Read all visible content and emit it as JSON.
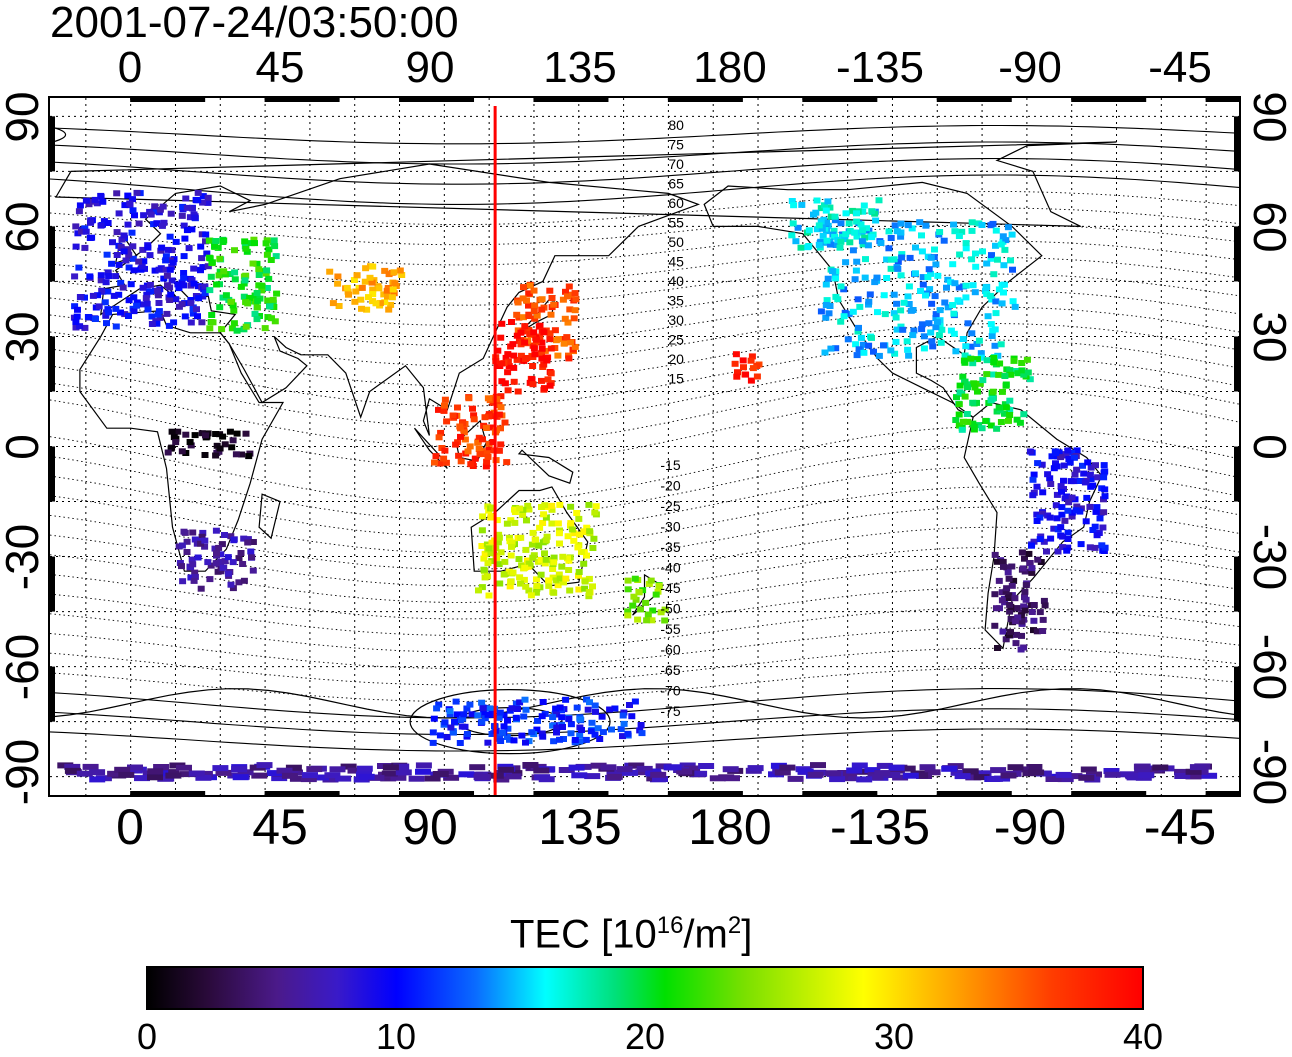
{
  "title": "2001-07-24/03:50:00",
  "top_lon_labels": [
    "0",
    "45",
    "90",
    "135",
    "180",
    "-135",
    "-90",
    "-45"
  ],
  "bottom_lon_labels": [
    "0",
    "45",
    "90",
    "135",
    "180",
    "-135",
    "-90",
    "-45"
  ],
  "left_lat_labels": [
    "90",
    "60",
    "30",
    "0",
    "-30",
    "-60",
    "-90"
  ],
  "right_lat_labels": [
    "90",
    "60",
    "30",
    "0",
    "-30",
    "-60",
    "-90"
  ],
  "contour_labels_north": [
    "80",
    "75",
    "70",
    "65",
    "60",
    "55",
    "50",
    "45",
    "40",
    "35",
    "30",
    "25",
    "20",
    "15"
  ],
  "contour_labels_south": [
    "-15",
    "-20",
    "-25",
    "-30",
    "-35",
    "-40",
    "-45",
    "-50",
    "-55",
    "-60",
    "-65",
    "-70",
    "-75"
  ],
  "marker_longitude": 122,
  "colorbar": {
    "title_main": "TEC  [10",
    "title_sup1": "16",
    "title_mid": "/m",
    "title_sup2": "2",
    "title_end": "]",
    "ticks": [
      "0",
      "10",
      "20",
      "30",
      "40"
    ],
    "min": 0,
    "max": 40
  },
  "map_axes": {
    "lon_range": [
      -27,
      371
    ],
    "lat_range": [
      -95,
      95
    ],
    "grid_lon_step": 15,
    "grid_lat_step": 15
  },
  "tec_regions": [
    {
      "lon": [
        -20,
        25
      ],
      "lat": [
        33,
        70
      ],
      "tec": 9
    },
    {
      "lon": [
        25,
        48
      ],
      "lat": [
        32,
        58
      ],
      "tec": 21
    },
    {
      "lon": [
        65,
        90
      ],
      "lat": [
        38,
        50
      ],
      "tec": 32
    },
    {
      "lon": [
        128,
        148
      ],
      "lat": [
        24,
        45
      ],
      "tec": 36
    },
    {
      "lon": [
        121,
        140
      ],
      "lat": [
        15,
        35
      ],
      "tec": 39
    },
    {
      "lon": [
        100,
        125
      ],
      "lat": [
        -5,
        15
      ],
      "tec": 37
    },
    {
      "lon": [
        10,
        40
      ],
      "lat": [
        -2,
        5
      ],
      "tec": 1
    },
    {
      "lon": [
        15,
        40
      ],
      "lat": [
        -38,
        -22
      ],
      "tec": 6
    },
    {
      "lon": [
        115,
        155
      ],
      "lat": [
        -40,
        -15
      ],
      "tec": 27
    },
    {
      "lon": [
        165,
        178
      ],
      "lat": [
        -47,
        -35
      ],
      "tec": 24
    },
    {
      "lon": [
        -160,
        -150
      ],
      "lat": [
        18,
        26
      ],
      "tec": 38
    },
    {
      "lon": [
        -130,
        -65
      ],
      "lat": [
        25,
        62
      ],
      "tec": 15
    },
    {
      "lon": [
        -140,
        -110
      ],
      "lat": [
        55,
        68
      ],
      "tec": 16
    },
    {
      "lon": [
        -85,
        -60
      ],
      "lat": [
        5,
        25
      ],
      "tec": 20
    },
    {
      "lon": [
        -60,
        -35
      ],
      "lat": [
        -28,
        0
      ],
      "tec": 9
    },
    {
      "lon": [
        -72,
        -55
      ],
      "lat": [
        -55,
        -28
      ],
      "tec": 4
    },
    {
      "lon": [
        -25,
        360
      ],
      "lat": [
        -90,
        -86
      ],
      "tec": 6
    },
    {
      "lon": [
        100,
        170
      ],
      "lat": [
        -80,
        -68
      ],
      "tec": 11
    }
  ]
}
